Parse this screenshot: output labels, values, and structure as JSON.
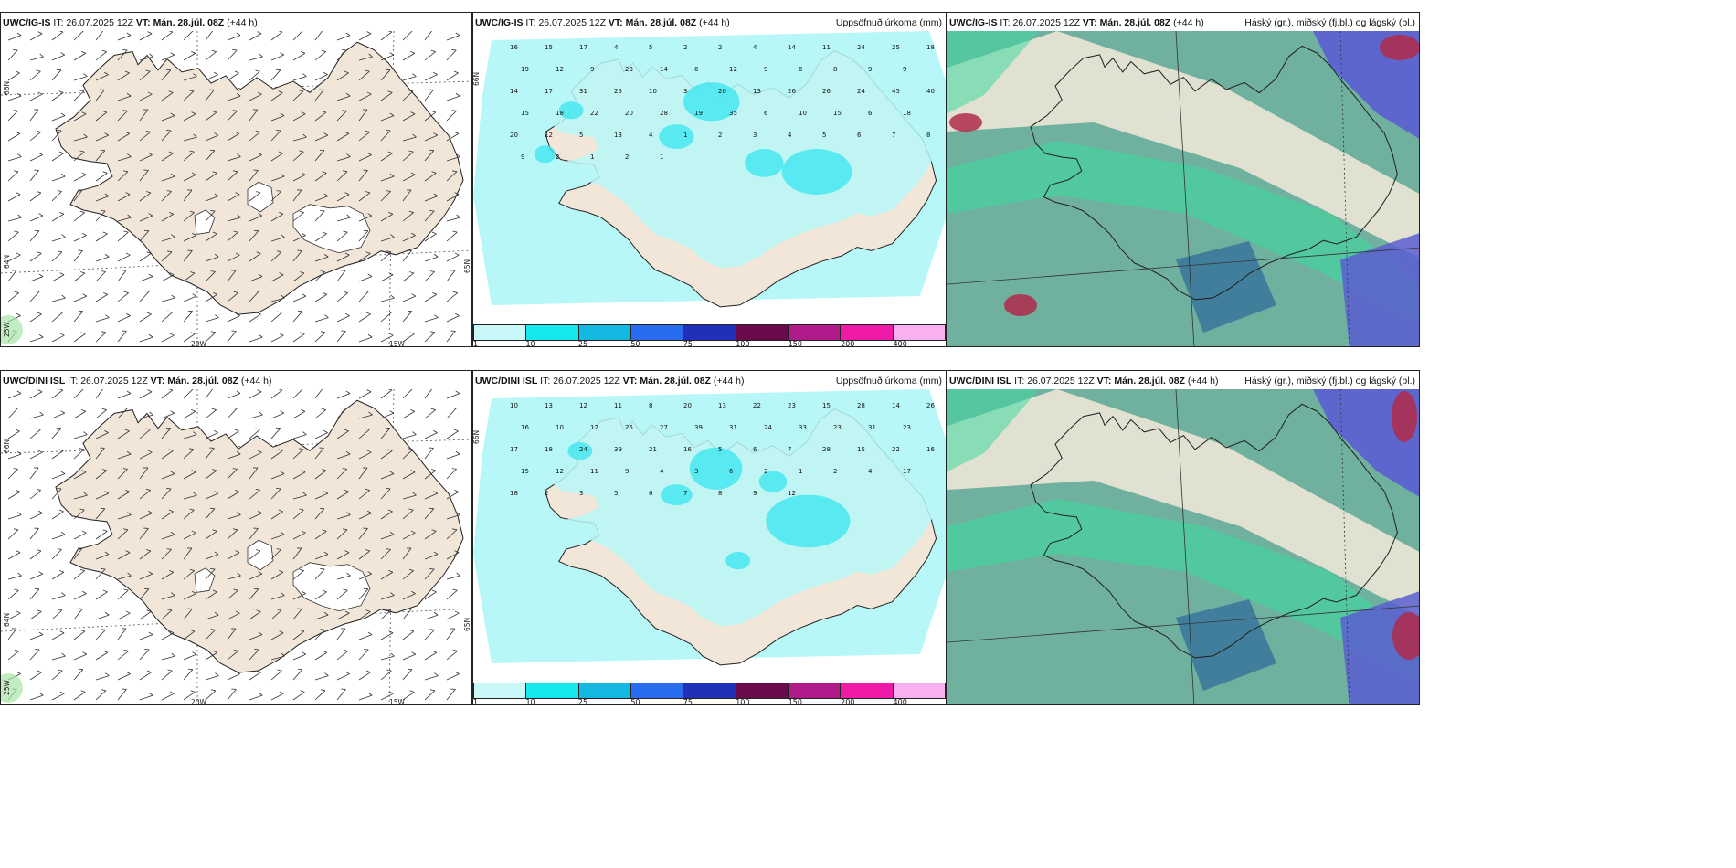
{
  "colors": {
    "land": "#f2e6d9",
    "sea": "#ffffff",
    "precip_light": "#b8f7f7",
    "precip_mid": "#3fe6f0",
    "cloud_base": "#6fb09e",
    "cloud_high": "#f4ead9",
    "cloud_mid": "#3fd9a0",
    "cloud_low": "#5a5ed0",
    "cloud_dark": "#b02a4a"
  },
  "rows": [
    {
      "model": "UWC/IG-IS",
      "it_label": "IT:",
      "it_value": "26.07.2025 12Z",
      "vt_label": "VT:",
      "vt_value": "Mán. 28.júl. 08Z",
      "lead": "(+44 h)",
      "precip_title": "Uppsöfnuð úrkoma (mm)",
      "cloud_title": "Háský (gr.), miðský (fj.bl.) og lágský (bl.)"
    },
    {
      "model": "UWC/DINI ISL",
      "it_label": "IT:",
      "it_value": "26.07.2025 12Z",
      "vt_label": "VT:",
      "vt_value": "Mán. 28.júl. 08Z",
      "lead": "(+44 h)",
      "precip_title": "Uppsöfnuð úrkoma (mm)",
      "cloud_title": "Háský (gr.), miðský (fj.bl.) og lágský (bl.)"
    }
  ],
  "graticule": {
    "lat66": "66N",
    "lat64": "64N",
    "lat65b": "65N",
    "lon20": "20W",
    "lon15": "15W",
    "lon25": "25W"
  },
  "colorbar": {
    "ticks": [
      "1",
      "10",
      "25",
      "50",
      "75",
      "100",
      "150",
      "200",
      "400"
    ],
    "colors": [
      "#c8f8f8",
      "#16e8f0",
      "#12b8e0",
      "#2a6cf0",
      "#2030b8",
      "#6a0a4a",
      "#b01a8a",
      "#f01aa8",
      "#f8b0f0"
    ]
  },
  "precip_values_top": [
    "16",
    "15",
    "17",
    "4",
    "5",
    "2",
    "2",
    "4",
    "14",
    "11",
    "24",
    "25",
    "18",
    "19",
    "12",
    "9",
    "23",
    "14",
    "6",
    "12",
    "9",
    "6",
    "8",
    "9",
    "9",
    "14",
    "17",
    "31",
    "25",
    "10",
    "3",
    "20",
    "13",
    "26",
    "26",
    "24",
    "45",
    "40",
    "15",
    "18",
    "22",
    "20",
    "28",
    "19",
    "35",
    "6",
    "10",
    "15",
    "6",
    "18",
    "20",
    "12",
    "5",
    "13",
    "4",
    "1",
    "2",
    "3",
    "4",
    "5",
    "6",
    "7",
    "8",
    "9",
    "2",
    "1",
    "2",
    "1"
  ],
  "precip_values_bottom": [
    "10",
    "13",
    "12",
    "11",
    "8",
    "20",
    "13",
    "22",
    "23",
    "15",
    "28",
    "14",
    "26",
    "16",
    "10",
    "12",
    "25",
    "27",
    "39",
    "31",
    "24",
    "33",
    "23",
    "31",
    "23",
    "17",
    "18",
    "24",
    "39",
    "21",
    "16",
    "5",
    "6",
    "7",
    "28",
    "15",
    "22",
    "16",
    "15",
    "12",
    "11",
    "9",
    "4",
    "3",
    "6",
    "2",
    "1",
    "2",
    "4",
    "17",
    "18",
    "2",
    "3",
    "5",
    "6",
    "7",
    "8",
    "9",
    "12"
  ]
}
